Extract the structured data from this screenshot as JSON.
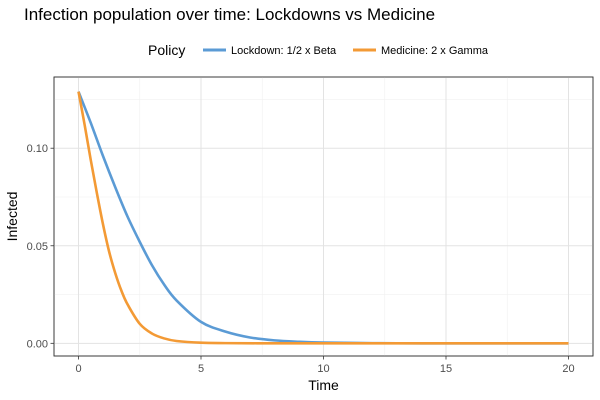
{
  "chart_data": {
    "type": "line",
    "title": "Infection population over time: Lockdowns vs Medicine",
    "xlabel": "Time",
    "ylabel": "Infected",
    "xlim": [
      -1.0,
      21.0
    ],
    "ylim": [
      -0.0065,
      0.1365
    ],
    "x_ticks": [
      0,
      5,
      10,
      15,
      20
    ],
    "y_ticks": [
      0.0,
      0.05,
      0.1
    ],
    "x_tick_labels": [
      "0",
      "5",
      "10",
      "15",
      "20"
    ],
    "y_tick_labels": [
      "0.00",
      "0.05",
      "0.10"
    ],
    "grid": true,
    "legend": {
      "title": "Policy",
      "placement": "top"
    },
    "series": [
      {
        "name": "Lockdown: 1/2 x Beta",
        "color": "#5b9bd5",
        "x": [
          0,
          0.5,
          1,
          1.5,
          2,
          2.5,
          3,
          3.5,
          4,
          5,
          6,
          7,
          8,
          9,
          10,
          12,
          14,
          16,
          18,
          20
        ],
        "y": [
          0.129,
          0.113,
          0.096,
          0.08,
          0.065,
          0.052,
          0.04,
          0.03,
          0.022,
          0.011,
          0.006,
          0.003,
          0.0015,
          0.0008,
          0.0004,
          0.0001,
          0.0,
          0.0,
          0.0,
          0.0
        ]
      },
      {
        "name": "Medicine: 2 x Gamma",
        "color": "#f39a35",
        "x": [
          0,
          0.25,
          0.5,
          0.75,
          1,
          1.25,
          1.5,
          1.75,
          2,
          2.5,
          3,
          3.5,
          4,
          5,
          6,
          8,
          10,
          15,
          20
        ],
        "y": [
          0.129,
          0.112,
          0.094,
          0.077,
          0.061,
          0.047,
          0.036,
          0.027,
          0.02,
          0.01,
          0.005,
          0.0025,
          0.0012,
          0.0003,
          0.0001,
          0.0,
          0.0,
          0.0,
          0.0
        ]
      }
    ]
  }
}
